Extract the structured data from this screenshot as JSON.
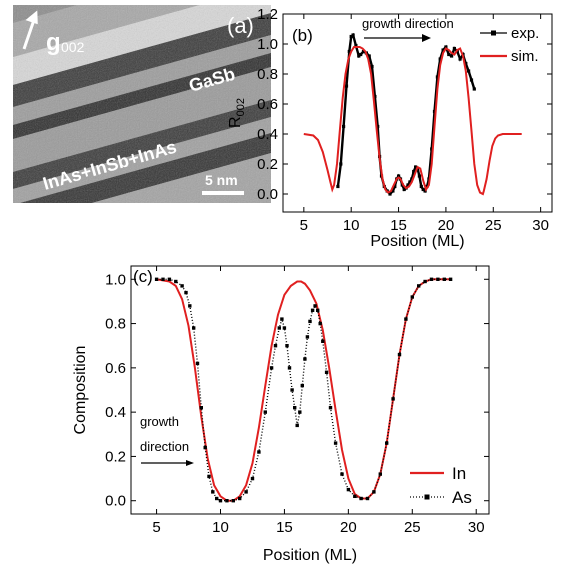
{
  "panel_a": {
    "label": "(a)",
    "vector": {
      "main": "g",
      "sub": "002"
    },
    "layer_top": "GaSb",
    "layer_bottom": "InAs+InSb+InAs",
    "scale_bar": "5 nm",
    "colors": {
      "arrow": "#ffffff",
      "text": "#ffffff"
    }
  },
  "chart_data": [
    {
      "type": "line",
      "panel_label": "(b)",
      "xlabel": "Position (ML)",
      "ylabel": "R",
      "ylabel_sub": "002",
      "xlim": [
        2.8,
        31.2
      ],
      "ylim": [
        -0.12,
        1.2
      ],
      "xticks": [
        5,
        10,
        15,
        20,
        25,
        30
      ],
      "xtick_labels": [
        "5",
        "10",
        "15",
        "20",
        "25",
        "30"
      ],
      "yticks": [
        0.0,
        0.2,
        0.4,
        0.6,
        0.8,
        1.0,
        1.2
      ],
      "ytick_labels": [
        "0.0",
        "0.2",
        "0.4",
        "0.6",
        "0.8",
        "1.0",
        "1.2"
      ],
      "annotation": "growth direction",
      "legend_position": "top-right",
      "series": [
        {
          "name": "exp.",
          "color": "#000000",
          "style": "line-square",
          "x": [
            8.6,
            8.9,
            9.2,
            9.5,
            9.8,
            10.0,
            10.2,
            10.5,
            10.8,
            11.0,
            11.3,
            11.6,
            11.9,
            12.2,
            12.5,
            12.8,
            13.0,
            13.2,
            13.5,
            13.8,
            14.1,
            14.4,
            14.6,
            14.8,
            15.0,
            15.2,
            15.4,
            15.6,
            15.8,
            16.0,
            16.2,
            16.4,
            16.6,
            16.8,
            17.0,
            17.2,
            17.4,
            17.6,
            17.8,
            18.0,
            18.2,
            18.5,
            18.8,
            19.1,
            19.4,
            19.7,
            20.0,
            20.3,
            20.6,
            20.9,
            21.2,
            21.5,
            21.8,
            22.1,
            22.4,
            22.7,
            23.0
          ],
          "y": [
            0.05,
            0.2,
            0.45,
            0.72,
            0.95,
            1.05,
            1.06,
            0.99,
            0.92,
            0.93,
            0.95,
            0.94,
            0.92,
            0.85,
            0.65,
            0.45,
            0.25,
            0.12,
            0.05,
            0.02,
            0.0,
            0.02,
            0.05,
            0.1,
            0.12,
            0.1,
            0.06,
            0.03,
            0.04,
            0.06,
            0.08,
            0.1,
            0.15,
            0.18,
            0.17,
            0.12,
            0.05,
            0.03,
            0.02,
            0.05,
            0.1,
            0.3,
            0.55,
            0.78,
            0.9,
            0.96,
            0.98,
            0.93,
            0.92,
            0.97,
            0.95,
            0.9,
            0.93,
            0.87,
            0.82,
            0.76,
            0.7
          ]
        },
        {
          "name": "sim.",
          "color": "#e02020",
          "style": "line",
          "x": [
            5.0,
            6.0,
            6.5,
            7.0,
            7.5,
            7.8,
            8.0,
            8.2,
            8.5,
            8.8,
            9.1,
            9.4,
            9.7,
            10.0,
            10.3,
            10.6,
            10.9,
            11.2,
            11.5,
            11.8,
            12.1,
            12.4,
            12.7,
            13.0,
            13.3,
            13.6,
            13.9,
            14.2,
            14.5,
            14.8,
            15.0,
            15.2,
            15.5,
            15.8,
            16.1,
            16.4,
            16.7,
            17.0,
            17.3,
            17.6,
            17.9,
            18.2,
            18.5,
            18.8,
            19.1,
            19.4,
            19.7,
            20.0,
            20.3,
            20.6,
            20.9,
            21.2,
            21.5,
            21.8,
            22.1,
            22.4,
            22.7,
            23.0,
            23.3,
            23.6,
            23.9,
            24.0,
            24.3,
            24.6,
            24.9,
            25.2,
            25.5,
            26.0,
            27.0,
            28.0
          ],
          "y": [
            0.4,
            0.39,
            0.36,
            0.28,
            0.16,
            0.08,
            0.03,
            0.06,
            0.2,
            0.42,
            0.64,
            0.8,
            0.9,
            0.95,
            0.98,
            0.98,
            0.98,
            0.97,
            0.95,
            0.9,
            0.8,
            0.62,
            0.42,
            0.24,
            0.1,
            0.03,
            0.01,
            0.02,
            0.06,
            0.1,
            0.11,
            0.1,
            0.06,
            0.04,
            0.05,
            0.08,
            0.13,
            0.18,
            0.17,
            0.09,
            0.03,
            0.06,
            0.2,
            0.45,
            0.7,
            0.86,
            0.94,
            0.97,
            0.96,
            0.94,
            0.93,
            0.96,
            0.97,
            0.92,
            0.82,
            0.64,
            0.42,
            0.2,
            0.06,
            0.01,
            0.0,
            0.02,
            0.1,
            0.22,
            0.32,
            0.37,
            0.39,
            0.4,
            0.4,
            0.4
          ]
        }
      ]
    },
    {
      "type": "line",
      "panel_label": "(c)",
      "xlabel": "Position (ML)",
      "ylabel": "Composition",
      "xlim": [
        3.0,
        31.0
      ],
      "ylim": [
        -0.06,
        1.06
      ],
      "xticks": [
        5,
        10,
        15,
        20,
        25,
        30
      ],
      "xtick_labels": [
        "5",
        "10",
        "15",
        "20",
        "25",
        "30"
      ],
      "yticks": [
        0.0,
        0.2,
        0.4,
        0.6,
        0.8,
        1.0
      ],
      "ytick_labels": [
        "0.0",
        "0.2",
        "0.4",
        "0.6",
        "0.8",
        "1.0"
      ],
      "annotation_lines": [
        "growth",
        "direction"
      ],
      "legend_position": "bottom-right",
      "series": [
        {
          "name": "In",
          "color": "#e02020",
          "style": "line",
          "x": [
            5.0,
            6.0,
            6.5,
            7.0,
            7.5,
            8.0,
            8.5,
            9.0,
            9.5,
            10.0,
            10.5,
            11.0,
            11.5,
            12.0,
            12.5,
            13.0,
            13.5,
            14.0,
            14.5,
            15.0,
            15.5,
            16.0,
            16.3,
            16.6,
            17.0,
            17.5,
            18.0,
            18.5,
            19.0,
            19.5,
            20.0,
            20.5,
            21.0,
            21.5,
            22.0,
            22.5,
            23.0,
            23.5,
            24.0,
            24.5,
            25.0,
            25.5,
            26.0,
            26.5,
            27.0,
            28.0
          ],
          "y": [
            1.0,
            0.99,
            0.97,
            0.91,
            0.79,
            0.6,
            0.38,
            0.19,
            0.07,
            0.02,
            0.0,
            0.0,
            0.02,
            0.07,
            0.17,
            0.33,
            0.52,
            0.7,
            0.84,
            0.93,
            0.97,
            0.99,
            0.99,
            0.98,
            0.95,
            0.89,
            0.77,
            0.6,
            0.41,
            0.23,
            0.1,
            0.03,
            0.01,
            0.01,
            0.04,
            0.12,
            0.26,
            0.46,
            0.66,
            0.82,
            0.92,
            0.97,
            0.99,
            1.0,
            1.0,
            1.0
          ]
        },
        {
          "name": "As",
          "color": "#000000",
          "style": "dash-square",
          "x": [
            5.0,
            5.5,
            6.0,
            6.5,
            7.0,
            7.3,
            7.6,
            7.9,
            8.2,
            8.5,
            8.8,
            9.1,
            9.4,
            9.7,
            10.0,
            10.5,
            11.0,
            11.5,
            12.0,
            12.5,
            13.0,
            13.5,
            14.0,
            14.3,
            14.6,
            14.8,
            15.0,
            15.2,
            15.4,
            15.6,
            15.8,
            16.0,
            16.2,
            16.4,
            16.6,
            16.8,
            17.0,
            17.2,
            17.4,
            17.6,
            17.8,
            18.0,
            18.3,
            18.6,
            19.0,
            19.5,
            20.0,
            20.5,
            21.0,
            21.5,
            22.0,
            22.5,
            23.0,
            23.5,
            24.0,
            24.5,
            25.0,
            25.5,
            26.0,
            26.5,
            27.0,
            27.5,
            28.0
          ],
          "y": [
            1.0,
            1.0,
            1.0,
            0.99,
            0.97,
            0.94,
            0.88,
            0.78,
            0.62,
            0.42,
            0.24,
            0.11,
            0.04,
            0.01,
            0.0,
            0.0,
            0.0,
            0.01,
            0.04,
            0.1,
            0.22,
            0.4,
            0.6,
            0.7,
            0.78,
            0.82,
            0.78,
            0.7,
            0.6,
            0.5,
            0.42,
            0.34,
            0.4,
            0.52,
            0.64,
            0.74,
            0.81,
            0.86,
            0.88,
            0.86,
            0.8,
            0.72,
            0.58,
            0.42,
            0.26,
            0.12,
            0.05,
            0.02,
            0.01,
            0.01,
            0.04,
            0.12,
            0.26,
            0.46,
            0.66,
            0.82,
            0.92,
            0.97,
            0.99,
            1.0,
            1.0,
            1.0,
            1.0
          ]
        }
      ]
    }
  ]
}
